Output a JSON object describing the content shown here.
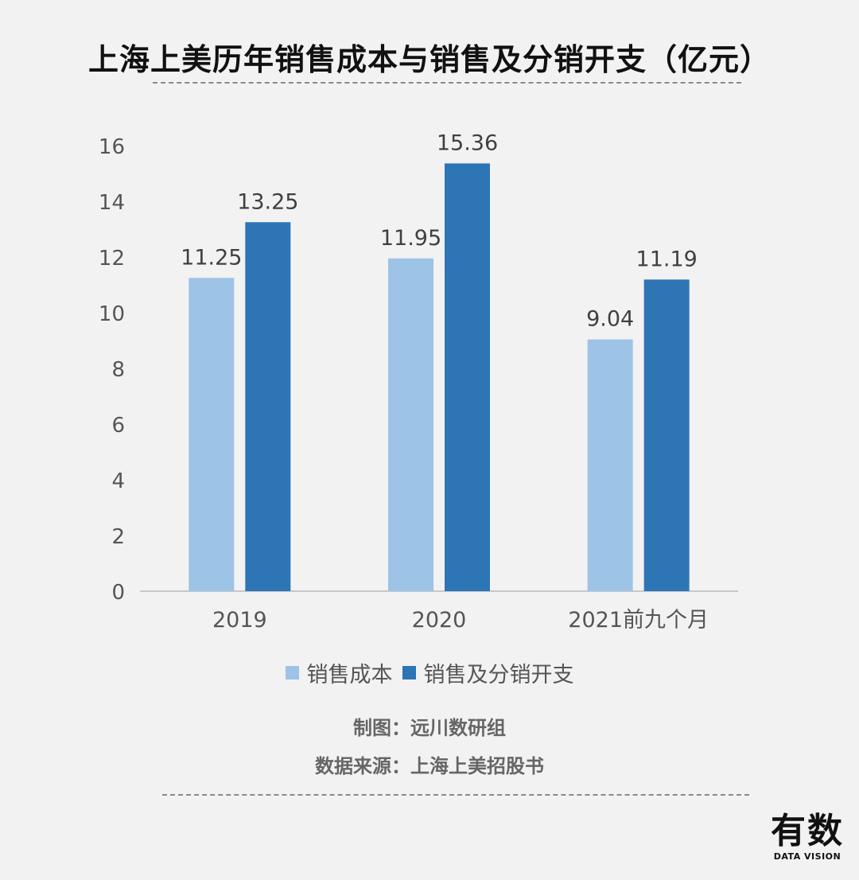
{
  "title": "上海上美历年销售成本与销售及分销开支（亿元）",
  "chart_data": {
    "type": "bar",
    "categories": [
      "2019",
      "2020",
      "2021前九个月"
    ],
    "series": [
      {
        "name": "销售成本",
        "values": [
          11.25,
          11.95,
          9.04
        ],
        "color": "#9dc3e6"
      },
      {
        "name": "销售及分销开支",
        "values": [
          13.25,
          15.36,
          11.19
        ],
        "color": "#2e75b6"
      }
    ],
    "value_labels": [
      [
        "11.25",
        "11.95",
        "9.04"
      ],
      [
        "13.25",
        "15.36",
        "11.19"
      ]
    ],
    "ylim": [
      0,
      16
    ],
    "yticks": [
      0,
      2,
      4,
      6,
      8,
      10,
      12,
      14,
      16
    ],
    "grid": false,
    "legend_position": "bottom"
  },
  "credits": {
    "maker": "制图：远川数研组",
    "source": "数据来源：上海上美招股书"
  },
  "logo": {
    "main": "有数",
    "sub": "DATA VISION"
  }
}
